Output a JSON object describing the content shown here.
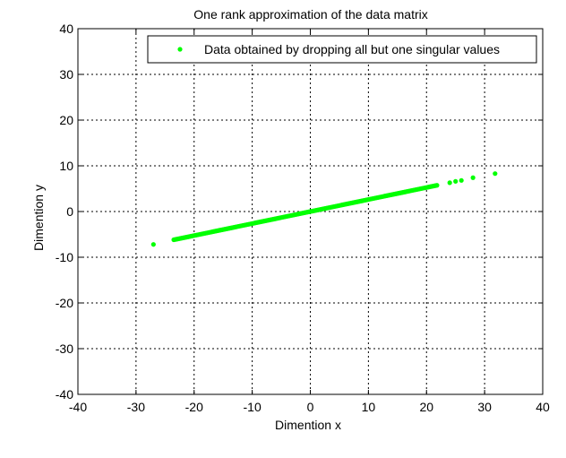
{
  "chart_data": {
    "type": "scatter",
    "title": "One rank approximation of the data matrix",
    "xlabel": "Dimention x",
    "ylabel": "Dimention y",
    "xlim": [
      -40,
      40
    ],
    "ylim": [
      -40,
      40
    ],
    "xticks": [
      -40,
      -30,
      -20,
      -10,
      0,
      10,
      20,
      30,
      40
    ],
    "yticks": [
      -40,
      -30,
      -20,
      -10,
      0,
      10,
      20,
      30,
      40
    ],
    "grid": true,
    "grid_style": "dotted",
    "legend_position": "top-right",
    "series": [
      {
        "name": "Data obtained by dropping all but one singular values",
        "color": "#00ff00",
        "marker": "dot",
        "slope": 0.263,
        "dense_range": [
          -23.5,
          21.8
        ],
        "points": [
          {
            "x": -27.0,
            "y": -7.2
          },
          {
            "x": 24.0,
            "y": 6.3
          },
          {
            "x": 25.0,
            "y": 6.6
          },
          {
            "x": 26.0,
            "y": 6.8
          },
          {
            "x": 28.0,
            "y": 7.4
          },
          {
            "x": 31.8,
            "y": 8.3
          }
        ]
      }
    ]
  }
}
